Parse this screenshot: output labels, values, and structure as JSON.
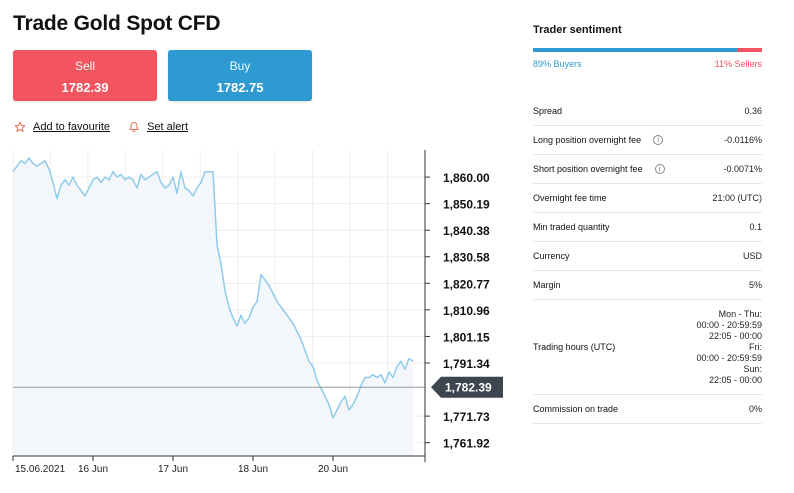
{
  "header": {
    "title": "Trade Gold Spot CFD"
  },
  "trade": {
    "sell_label": "Sell",
    "sell_price": "1782.39",
    "buy_label": "Buy",
    "buy_price": "1782.75"
  },
  "actions": {
    "favourite_label": "Add to favourite",
    "alert_label": "Set alert"
  },
  "sentiment": {
    "title": "Trader sentiment",
    "buyers_pct": 89,
    "buyers_label": "89% Buyers",
    "sellers_label": "11% Sellers"
  },
  "info": {
    "spread_label": "Spread",
    "spread_value": "0.36",
    "long_fee_label": "Long position overnight fee",
    "long_fee_value": "-0.0116%",
    "short_fee_label": "Short position overnight fee",
    "short_fee_value": "-0.0071%",
    "fee_time_label": "Overnight fee time",
    "fee_time_value": "21:00 (UTC)",
    "min_qty_label": "Min traded quantity",
    "min_qty_value": "0.1",
    "currency_label": "Currency",
    "currency_value": "USD",
    "margin_label": "Margin",
    "margin_value": "5%",
    "hours_label": "Trading hours (UTC)",
    "hours_lines": [
      "Mon - Thu:",
      "00:00 - 20:59:59",
      "22:05 - 00:00",
      "Fri:",
      "00:00 - 20:59:59",
      "Sun:",
      "22:05 - 00:00"
    ],
    "commission_label": "Commission on trade",
    "commission_value": "0%"
  },
  "icons": {
    "favourite": "star-icon",
    "alert": "bell-icon",
    "info": "info-icon"
  },
  "colors": {
    "sell": "#f2555f",
    "buy": "#2f9ad1",
    "line": "#8fcbea",
    "area": "#f3f7fb",
    "marker": "#3c4550"
  },
  "chart_data": {
    "type": "area",
    "x_tick_labels": [
      "15.06.2021",
      "16 Jun",
      "17 Jun",
      "18 Jun",
      "20 Jun"
    ],
    "x_tick_index": [
      0,
      0.2,
      0.4,
      0.6,
      0.8
    ],
    "y_tick_labels": [
      "1,860.00",
      "1,850.19",
      "1,840.38",
      "1,830.58",
      "1,820.77",
      "1,810.96",
      "1,801.15",
      "1,791.34",
      "1,771.73",
      "1,761.92"
    ],
    "y_tick_values": [
      1860.0,
      1850.19,
      1840.38,
      1830.58,
      1820.77,
      1810.96,
      1801.15,
      1791.34,
      1771.73,
      1761.92
    ],
    "ylim": [
      1757,
      1870
    ],
    "current_price": 1782.39,
    "current_label": "1,782.39",
    "grid": true,
    "series": [
      {
        "t": [
          0,
          0.01,
          0.02,
          0.03,
          0.04,
          0.05,
          0.06,
          0.07,
          0.08,
          0.09,
          0.1,
          0.11,
          0.12,
          0.13,
          0.14,
          0.15,
          0.16,
          0.17,
          0.18,
          0.19,
          0.2,
          0.21,
          0.22,
          0.23,
          0.24,
          0.25,
          0.26,
          0.27,
          0.28,
          0.29,
          0.3,
          0.31,
          0.32,
          0.33,
          0.34,
          0.35,
          0.36,
          0.37,
          0.38,
          0.39,
          0.4,
          0.41,
          0.42,
          0.43,
          0.44,
          0.45,
          0.46,
          0.47,
          0.48,
          0.49,
          0.5,
          0.51,
          0.52,
          0.53,
          0.54,
          0.55,
          0.56,
          0.57,
          0.58,
          0.59,
          0.6,
          0.61,
          0.62,
          0.63,
          0.64,
          0.65,
          0.66,
          0.67,
          0.68,
          0.69,
          0.7,
          0.71,
          0.72,
          0.73,
          0.74,
          0.75,
          0.76,
          0.77,
          0.78,
          0.79,
          0.8,
          0.81,
          0.82,
          0.83,
          0.84,
          0.85,
          0.86,
          0.87,
          0.88,
          0.89,
          0.9,
          0.91,
          0.92,
          0.93,
          0.94,
          0.95,
          0.96,
          0.97,
          0.98,
          0.99,
          1
        ],
        "values": [
          1862,
          1864,
          1866,
          1865,
          1867,
          1865,
          1864,
          1865,
          1866,
          1863,
          1858,
          1852,
          1857,
          1859,
          1857,
          1860,
          1857,
          1855,
          1853,
          1856,
          1859,
          1860,
          1858,
          1860,
          1859,
          1862,
          1860,
          1861,
          1859,
          1860,
          1859,
          1856,
          1861,
          1859,
          1860,
          1861,
          1862,
          1858,
          1856,
          1857,
          1860,
          1854,
          1862,
          1856,
          1855,
          1853,
          1856,
          1858,
          1862,
          1862,
          1862,
          1835,
          1828,
          1818,
          1812,
          1808,
          1805,
          1809,
          1806,
          1808,
          1812,
          1814,
          1824,
          1822,
          1820,
          1817,
          1814,
          1812,
          1810,
          1808,
          1806,
          1803,
          1800,
          1796,
          1792,
          1790,
          1785,
          1782,
          1779,
          1776,
          1771,
          1774,
          1777,
          1779,
          1774,
          1776,
          1779,
          1783,
          1786,
          1786,
          1787,
          1786,
          1787,
          1784,
          1788,
          1786,
          1790,
          1792,
          1789,
          1793,
          1792
        ]
      }
    ]
  }
}
